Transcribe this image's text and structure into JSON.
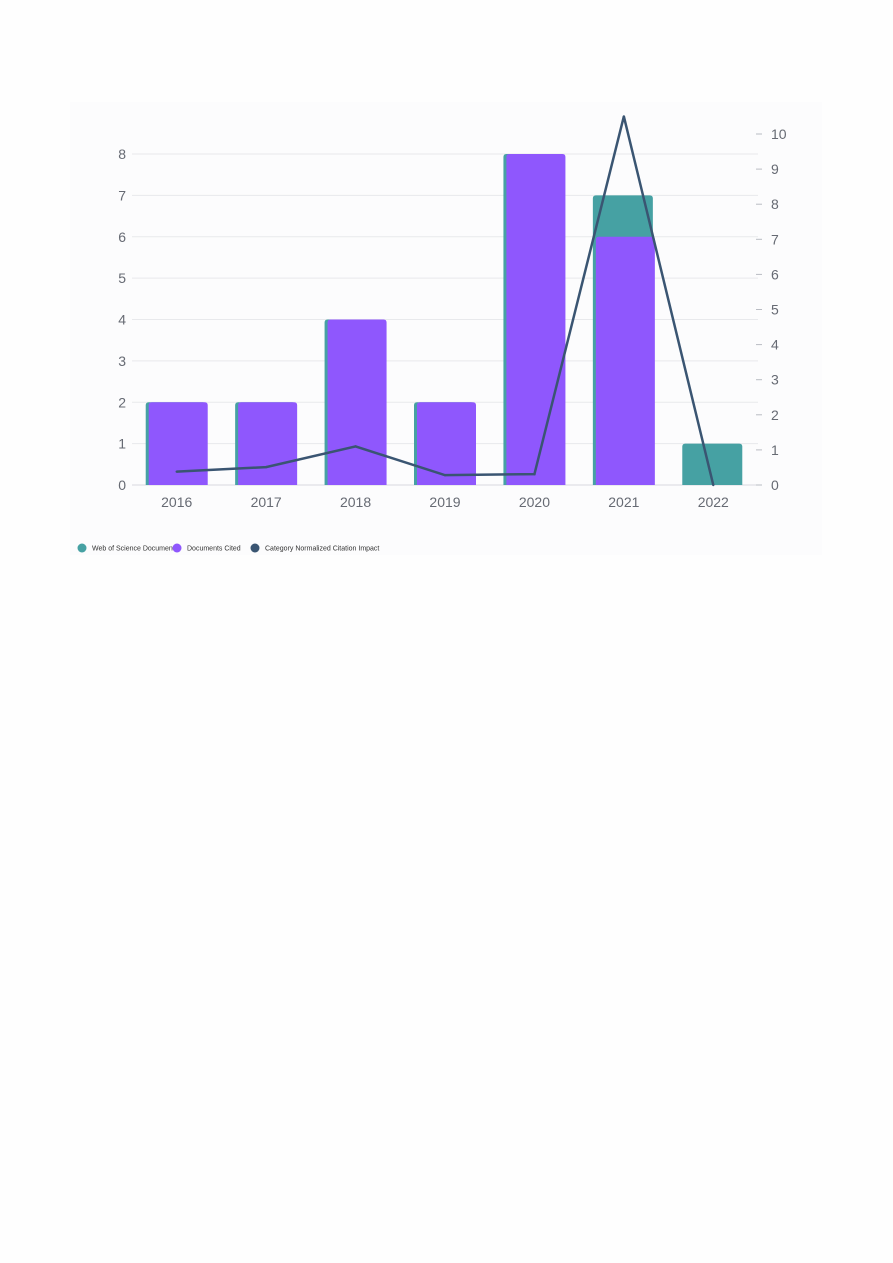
{
  "chart_data": {
    "type": "bar",
    "categories": [
      "2016",
      "2017",
      "2018",
      "2019",
      "2020",
      "2021",
      "2022"
    ],
    "series": [
      {
        "name": "Web of Science Documents",
        "kind": "bar",
        "axis": "left",
        "values": [
          2,
          2,
          4,
          2,
          8,
          7,
          1
        ]
      },
      {
        "name": "Documents Cited",
        "kind": "bar",
        "axis": "left",
        "values": [
          2,
          2,
          4,
          2,
          8,
          6,
          0
        ]
      },
      {
        "name": "Category Normalized Citation Impact",
        "kind": "line",
        "axis": "right",
        "values": [
          0.38,
          0.51,
          1.1,
          0.28,
          0.31,
          10.5,
          0
        ]
      }
    ],
    "y_left": {
      "ylim": [
        0,
        8
      ],
      "ticks": [
        "0",
        "1",
        "2",
        "3",
        "4",
        "5",
        "6",
        "7",
        "8"
      ]
    },
    "y_right": {
      "ylim": [
        0,
        10
      ],
      "ticks": [
        "0",
        "1",
        "2",
        "3",
        "4",
        "5",
        "6",
        "7",
        "8",
        "9",
        "10"
      ]
    },
    "grid": true,
    "legend_position": "bottom-left",
    "colors": {
      "Web of Science Documents": "#46a1a3",
      "Documents Cited": "#8f57fd",
      "Category Normalized Citation Impact": "#3a5572"
    }
  }
}
